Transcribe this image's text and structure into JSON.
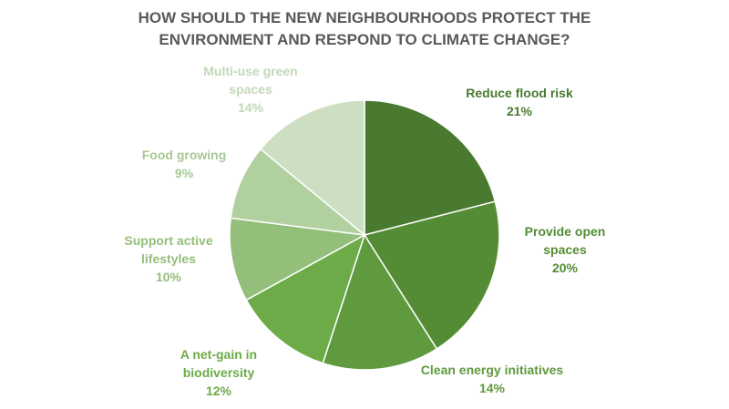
{
  "chart_data": {
    "type": "pie",
    "title_lines": [
      "HOW SHOULD THE NEW NEIGHBOURHOODS PROTECT THE",
      "ENVIRONMENT AND RESPOND TO CLIMATE CHANGE?"
    ],
    "slices": [
      {
        "label_lines": [
          "Reduce flood risk"
        ],
        "value": 21,
        "value_label": "21%",
        "color": "#4a7a2f",
        "label_color": "#4a7a2f"
      },
      {
        "label_lines": [
          "Provide open",
          "spaces"
        ],
        "value": 20,
        "value_label": "20%",
        "color": "#548c35",
        "label_color": "#548c35"
      },
      {
        "label_lines": [
          "Clean energy initiatives"
        ],
        "value": 14,
        "value_label": "14%",
        "color": "#5f9a3e",
        "label_color": "#5f9a3e"
      },
      {
        "label_lines": [
          "A net-gain in",
          "biodiversity"
        ],
        "value": 12,
        "value_label": "12%",
        "color": "#6cab47",
        "label_color": "#6cab47"
      },
      {
        "label_lines": [
          "Support active",
          "lifestyles"
        ],
        "value": 10,
        "value_label": "10%",
        "color": "#93bf7b",
        "label_color": "#93bf7b"
      },
      {
        "label_lines": [
          "Food growing"
        ],
        "value": 9,
        "value_label": "9%",
        "color": "#b1d09f",
        "label_color": "#a8c996"
      },
      {
        "label_lines": [
          "Multi-use green",
          "spaces"
        ],
        "value": 14,
        "value_label": "14%",
        "color": "#cddfc2",
        "label_color": "#c4d9b8"
      }
    ]
  }
}
